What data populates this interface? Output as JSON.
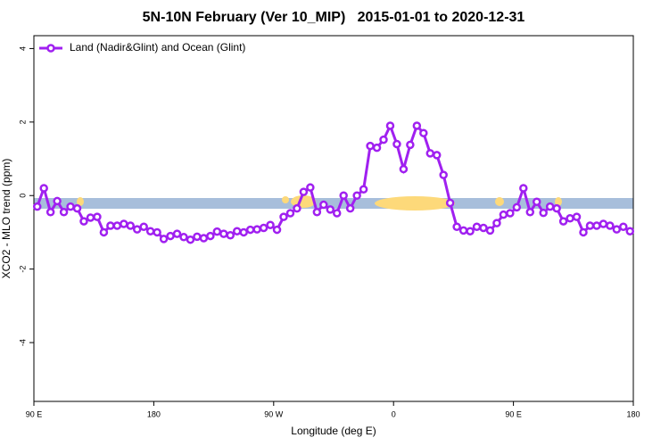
{
  "chart_data": {
    "type": "line",
    "title": "5N-10N February (Ver 10_MIP)   2015-01-01 to 2020-12-31",
    "xlabel": "Longitude (deg E)",
    "ylabel": "XCO2 - MLO trend (ppm)",
    "xlim": [
      90,
      540
    ],
    "ylim": [
      -5.6,
      4.35
    ],
    "xticks": [
      {
        "value": 90,
        "label": "90 E"
      },
      180,
      {
        "value": 270,
        "label": "90 W"
      },
      {
        "value": 360,
        "label": "0"
      },
      {
        "value": 450,
        "label": "90 E"
      },
      {
        "value": 540,
        "label": "180"
      }
    ],
    "yticks": [
      -4,
      -2,
      0,
      2,
      4
    ],
    "legend": "top-left",
    "x": [
      92.5,
      97.5,
      102.5,
      107.5,
      112.5,
      117.5,
      122.5,
      127.5,
      132.5,
      137.5,
      142.5,
      147.5,
      152.5,
      157.5,
      162.5,
      167.5,
      172.5,
      177.5,
      182.5,
      187.5,
      192.5,
      197.5,
      202.5,
      207.5,
      212.5,
      217.5,
      222.5,
      227.5,
      232.5,
      237.5,
      242.5,
      247.5,
      252.5,
      257.5,
      262.5,
      267.5,
      272.5,
      277.5,
      282.5,
      287.5,
      292.5,
      297.5,
      302.5,
      307.5,
      312.5,
      317.5,
      322.5,
      327.5,
      332.5,
      337.5,
      342.5,
      347.5,
      352.5,
      357.5,
      362.5,
      367.5,
      372.5,
      377.5,
      382.5,
      387.5,
      392.5,
      397.5,
      402.5,
      407.5,
      412.5,
      417.5,
      422.5,
      427.5,
      432.5,
      437.5,
      442.5,
      447.5,
      452.5,
      457.5,
      462.5,
      467.5,
      472.5,
      477.5,
      482.5,
      487.5,
      492.5,
      497.5,
      502.5,
      507.5,
      512.5,
      517.5,
      522.5,
      527.5,
      532.5,
      537.5
    ],
    "series": [
      {
        "name": "Land (Nadir&Glint) and Ocean (Glint)",
        "color": "#a020f0",
        "values": [
          -0.3,
          0.2,
          -0.45,
          -0.15,
          -0.45,
          -0.3,
          -0.35,
          -0.7,
          -0.6,
          -0.58,
          -1.0,
          -0.82,
          -0.82,
          -0.77,
          -0.82,
          -0.92,
          -0.85,
          -0.97,
          -1.0,
          -1.18,
          -1.1,
          -1.04,
          -1.13,
          -1.2,
          -1.12,
          -1.16,
          -1.1,
          -0.98,
          -1.04,
          -1.08,
          -0.97,
          -1.0,
          -0.93,
          -0.92,
          -0.88,
          -0.8,
          -0.93,
          -0.58,
          -0.48,
          -0.35,
          0.1,
          0.22,
          -0.45,
          -0.25,
          -0.38,
          -0.48,
          0.0,
          -0.35,
          0.0,
          0.17,
          1.35,
          1.3,
          1.52,
          1.9,
          1.4,
          0.72,
          1.38,
          1.9,
          1.7,
          1.15,
          1.1,
          0.56,
          -0.2,
          -0.85,
          -0.95,
          -0.97,
          -0.85,
          -0.88,
          -0.95,
          -0.75,
          -0.52,
          -0.48,
          -0.32,
          0.2,
          -0.45,
          -0.17,
          -0.47,
          -0.3,
          -0.35,
          -0.7,
          -0.62,
          -0.58,
          -1.0,
          -0.82,
          -0.82,
          -0.77,
          -0.82,
          -0.92,
          -0.85,
          -0.97
        ]
      }
    ]
  }
}
